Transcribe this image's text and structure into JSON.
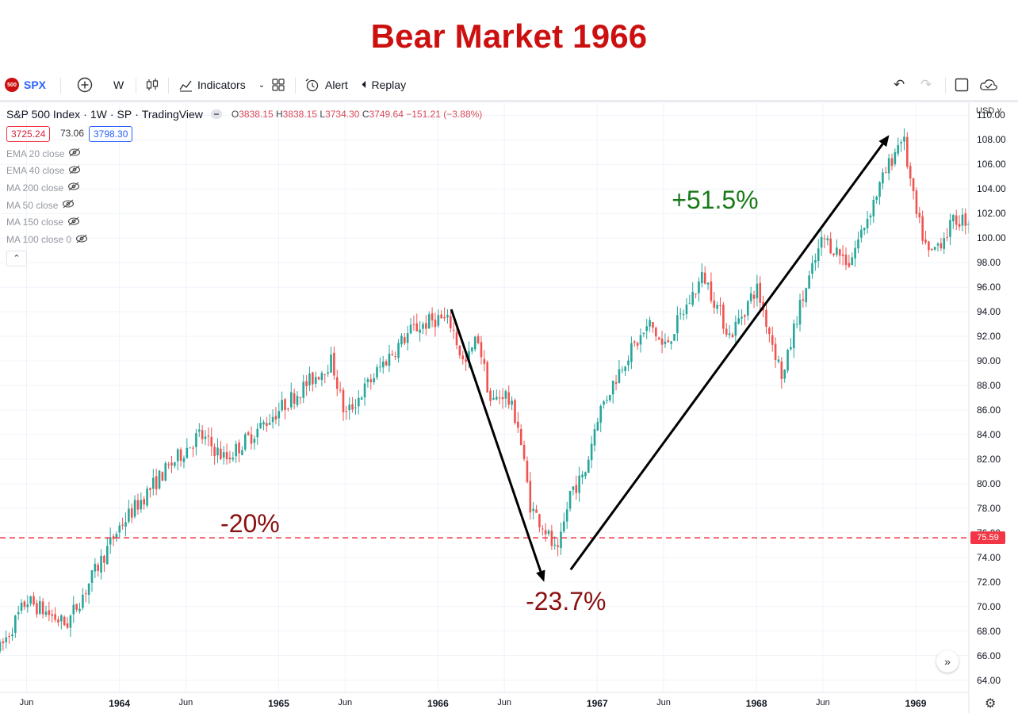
{
  "headline": "Bear Market 1966",
  "toolbar": {
    "symbol_logo": "500",
    "symbol": "SPX",
    "add_icon": "plus-circle-icon",
    "interval": "W",
    "chart_type_icon": "candles-icon",
    "indicators_label": "Indicators",
    "layout_icon": "grid-icon",
    "alert_label": "Alert",
    "replay_label": "Replay",
    "undo_icon": "undo-icon",
    "redo_icon": "redo-icon",
    "fullscreen_icon": "square-icon",
    "cloud_icon": "cloud-check-icon"
  },
  "legend": {
    "name": "S&P 500 Index",
    "interval": "1W",
    "exchange": "SP",
    "source": "TradingView",
    "o_label": "O",
    "o_value": "3838.15",
    "h_label": "H",
    "h_value": "3838.15",
    "l_label": "L",
    "l_value": "3734.30",
    "c_label": "C",
    "c_value": "3749.64",
    "change": "−151.21 (−3.88%)",
    "bid": "3725.24",
    "spread": "73.06",
    "ask": "3798.30"
  },
  "indicators": [
    {
      "label": "EMA 20 close"
    },
    {
      "label": "EMA 40 close"
    },
    {
      "label": "MA 200 close"
    },
    {
      "label": "MA 50 close"
    },
    {
      "label": "MA 150 close"
    },
    {
      "label": "MA 100 close 0"
    }
  ],
  "currency_label": "USD ˅",
  "colors": {
    "up": "#26a69a",
    "down": "#ef5350",
    "accent_red": "#cc1010",
    "green_text": "#1a7a1a",
    "dark_red_text": "#8b1010",
    "price_line": "#f23645"
  },
  "chart_data": {
    "type": "candlestick",
    "title": "Bear Market 1966",
    "x_range": [
      "1963-04",
      "1969-05"
    ],
    "ylim": [
      63,
      111
    ],
    "y_ticks": [
      "110.00",
      "108.00",
      "106.00",
      "104.00",
      "102.00",
      "100.00",
      "98.00",
      "96.00",
      "94.00",
      "92.00",
      "90.00",
      "88.00",
      "86.00",
      "84.00",
      "82.00",
      "80.00",
      "78.00",
      "76.00",
      "74.00",
      "72.00",
      "70.00",
      "68.00",
      "66.00",
      "64.00"
    ],
    "x_ticks": [
      {
        "label": "Jun",
        "date": "1963-06",
        "year": false
      },
      {
        "label": "1964",
        "date": "1964-01",
        "year": true
      },
      {
        "label": "Jun",
        "date": "1964-06",
        "year": false
      },
      {
        "label": "1965",
        "date": "1965-01",
        "year": true
      },
      {
        "label": "Jun",
        "date": "1965-06",
        "year": false
      },
      {
        "label": "1966",
        "date": "1966-01",
        "year": true
      },
      {
        "label": "Jun",
        "date": "1966-06",
        "year": false
      },
      {
        "label": "1967",
        "date": "1967-01",
        "year": true
      },
      {
        "label": "Jun",
        "date": "1967-06",
        "year": false
      },
      {
        "label": "1968",
        "date": "1968-01",
        "year": true
      },
      {
        "label": "Jun",
        "date": "1968-06",
        "year": false
      },
      {
        "label": "1969",
        "date": "1969-01",
        "year": true
      }
    ],
    "price_line": {
      "value": 75.59,
      "label": "75.59"
    },
    "path": [
      {
        "date": "1963-04",
        "close": 66.5
      },
      {
        "date": "1963-06",
        "close": 70.5
      },
      {
        "date": "1963-09",
        "close": 68.5
      },
      {
        "date": "1963-12",
        "close": 74.5
      },
      {
        "date": "1964-01",
        "close": 76.5
      },
      {
        "date": "1964-04",
        "close": 80.5
      },
      {
        "date": "1964-07",
        "close": 84.0
      },
      {
        "date": "1964-09",
        "close": 82.0
      },
      {
        "date": "1964-12",
        "close": 85.0
      },
      {
        "date": "1965-02",
        "close": 87.0
      },
      {
        "date": "1965-05",
        "close": 90.0
      },
      {
        "date": "1965-06",
        "close": 85.5
      },
      {
        "date": "1965-09",
        "close": 90.0
      },
      {
        "date": "1965-11",
        "close": 92.5
      },
      {
        "date": "1966-01",
        "close": 93.5
      },
      {
        "date": "1966-02",
        "close": 93.0
      },
      {
        "date": "1966-03",
        "close": 89.5
      },
      {
        "date": "1966-04",
        "close": 92.0
      },
      {
        "date": "1966-05",
        "close": 86.5
      },
      {
        "date": "1966-06",
        "close": 87.5
      },
      {
        "date": "1966-07",
        "close": 85.0
      },
      {
        "date": "1966-08",
        "close": 78.0
      },
      {
        "date": "1966-09",
        "close": 76.5
      },
      {
        "date": "1966-10",
        "close": 74.0
      },
      {
        "date": "1966-11",
        "close": 79.5
      },
      {
        "date": "1966-12",
        "close": 80.5
      },
      {
        "date": "1967-01",
        "close": 85.5
      },
      {
        "date": "1967-03",
        "close": 90.0
      },
      {
        "date": "1967-05",
        "close": 93.0
      },
      {
        "date": "1967-06",
        "close": 91.0
      },
      {
        "date": "1967-08",
        "close": 95.0
      },
      {
        "date": "1967-09",
        "close": 97.0
      },
      {
        "date": "1967-11",
        "close": 92.0
      },
      {
        "date": "1968-01",
        "close": 96.0
      },
      {
        "date": "1968-03",
        "close": 88.5
      },
      {
        "date": "1968-04",
        "close": 93.5
      },
      {
        "date": "1968-06",
        "close": 100.0
      },
      {
        "date": "1968-08",
        "close": 98.0
      },
      {
        "date": "1968-10",
        "close": 103.5
      },
      {
        "date": "1968-12",
        "close": 108.5
      },
      {
        "date": "1969-01",
        "close": 102.0
      },
      {
        "date": "1969-02",
        "close": 98.5
      },
      {
        "date": "1969-04",
        "close": 101.5
      }
    ],
    "annotations": [
      {
        "text": "-20%",
        "date": "1964-11",
        "price": 76.6,
        "color": "dark_red_text"
      },
      {
        "text": "-23.7%",
        "date": "1966-10",
        "price": 70.3,
        "color": "dark_red_text"
      },
      {
        "text": "+51.5%",
        "date": "1967-09",
        "price": 103.0,
        "color": "green_text"
      }
    ],
    "arrows": [
      {
        "from": {
          "date": "1966-02",
          "price": 94.2
        },
        "to": {
          "date": "1966-09",
          "price": 72.0
        }
      },
      {
        "from": {
          "date": "1966-11",
          "price": 73.0
        },
        "to": {
          "date": "1968-11",
          "price": 108.4
        }
      }
    ]
  }
}
